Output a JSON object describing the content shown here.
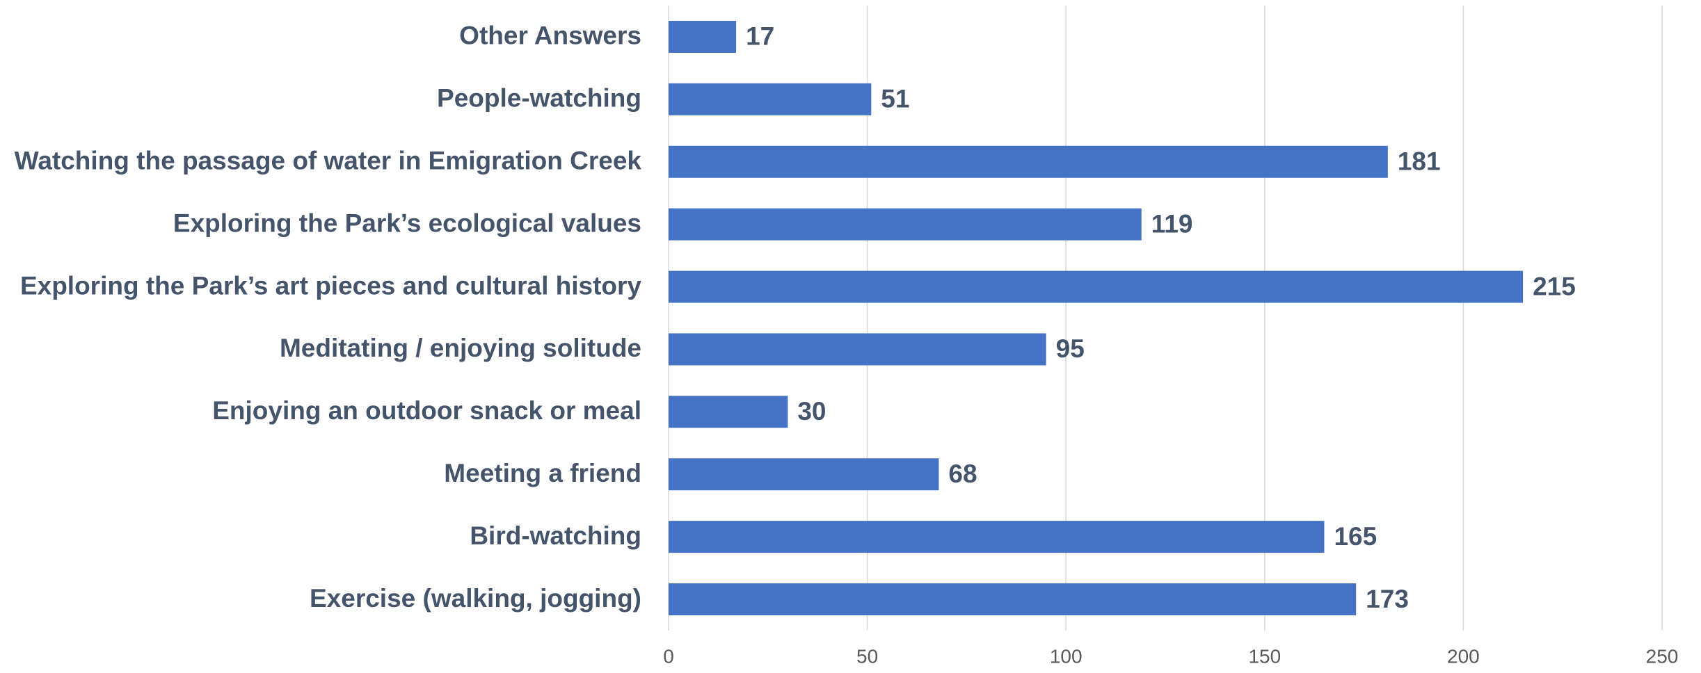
{
  "chart_data": {
    "type": "bar",
    "orientation": "horizontal",
    "categories": [
      "Exercise (walking, jogging)",
      "Bird-watching",
      "Meeting a friend",
      "Enjoying an outdoor snack or meal",
      "Meditating / enjoying solitude",
      "Exploring the Park’s art pieces and cultural history",
      "Exploring the Park’s ecological values",
      "Watching the passage of water in Emigration Creek",
      "People-watching",
      "Other Answers"
    ],
    "values": [
      173,
      165,
      68,
      30,
      95,
      215,
      119,
      181,
      51,
      17
    ],
    "color": "#4472c4",
    "xlim": [
      0,
      250
    ],
    "xticks": [
      0,
      50,
      100,
      150,
      200,
      250
    ],
    "grid": true
  }
}
